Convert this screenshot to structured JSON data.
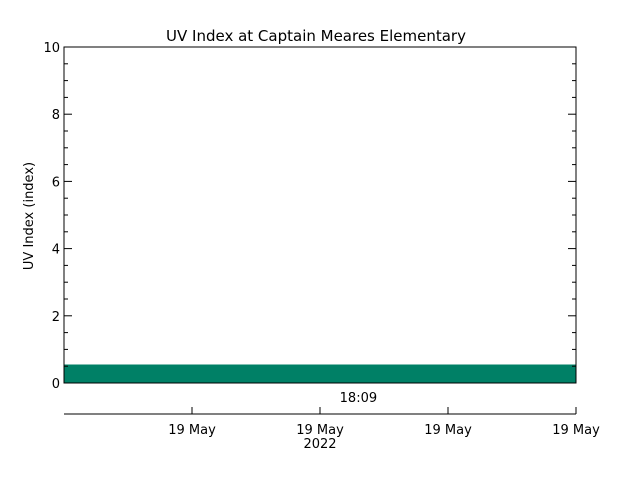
{
  "chart_data": {
    "type": "area",
    "title": "UV Index at Captain Meares Elementary",
    "ylabel": "UV Index (index)",
    "xlabel": "",
    "ylim": [
      0,
      10
    ],
    "yticks": [
      0,
      2,
      4,
      6,
      8,
      10
    ],
    "x_range": [
      "2022-05-19 17:00",
      "2022-05-19 19:00"
    ],
    "x_marker": {
      "time": "2022-05-19 18:09",
      "label": "18:09"
    },
    "x_ticks": [
      {
        "time": "2022-05-19 17:30",
        "label": "19 May"
      },
      {
        "time": "2022-05-19 18:00",
        "label": "19 May"
      },
      {
        "time": "2022-05-19 18:30",
        "label": "19 May"
      },
      {
        "time": "2022-05-19 19:00",
        "label": "19 May"
      }
    ],
    "year_label": "2022",
    "series": [
      {
        "color": "#008066",
        "points": [
          {
            "time": "2022-05-19 17:00",
            "value": 0.55
          },
          {
            "time": "2022-05-19 19:00",
            "value": 0.55
          }
        ]
      }
    ],
    "grid": false
  }
}
